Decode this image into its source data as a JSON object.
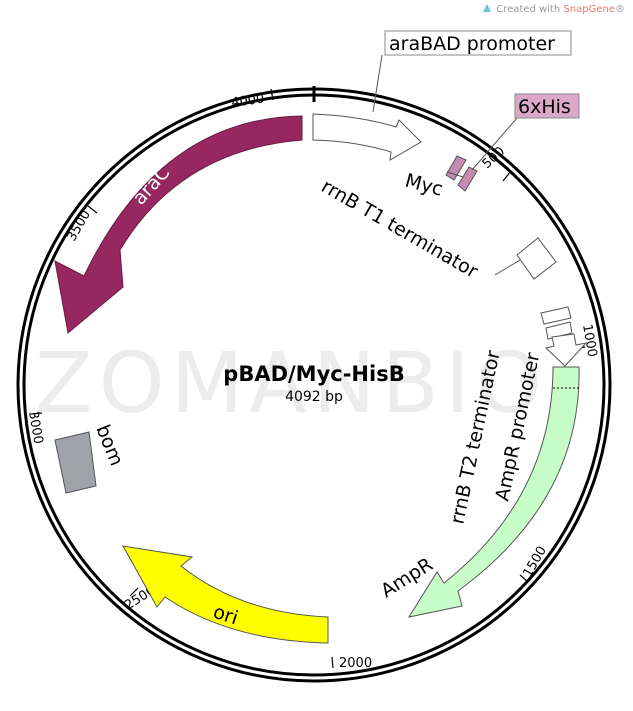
{
  "credit": {
    "prefix": "Created with",
    "brand": "SnapGene",
    "mark": "®"
  },
  "watermark": "ZOMANBIO",
  "plasmid": {
    "name": "pBAD/Myc-HisB",
    "size_label": "4092 bp"
  },
  "ticks": {
    "t500": "500",
    "t1000": "1000",
    "t1500": "1500",
    "t2000": "2000",
    "t2500": "2500",
    "t3000": "3000",
    "t3500": "3500",
    "t4000": "4000"
  },
  "features": {
    "araBAD_promoter": "araBAD promoter",
    "his6": "6xHis",
    "myc": "Myc",
    "rrnB_T1": "rrnB T1 terminator",
    "rrnB_T2": "rrnB T2 terminator",
    "AmpR_promoter": "AmpR promoter",
    "AmpR": "AmpR",
    "ori": "ori",
    "bom": "bom",
    "araC": "araC"
  },
  "colors": {
    "araC": "#962761",
    "his6": "#c48bb1",
    "AmpR": "#c8fcc8",
    "ori": "#ffff00",
    "bom": "#a0a3a9",
    "promoter": "#ffffff"
  }
}
